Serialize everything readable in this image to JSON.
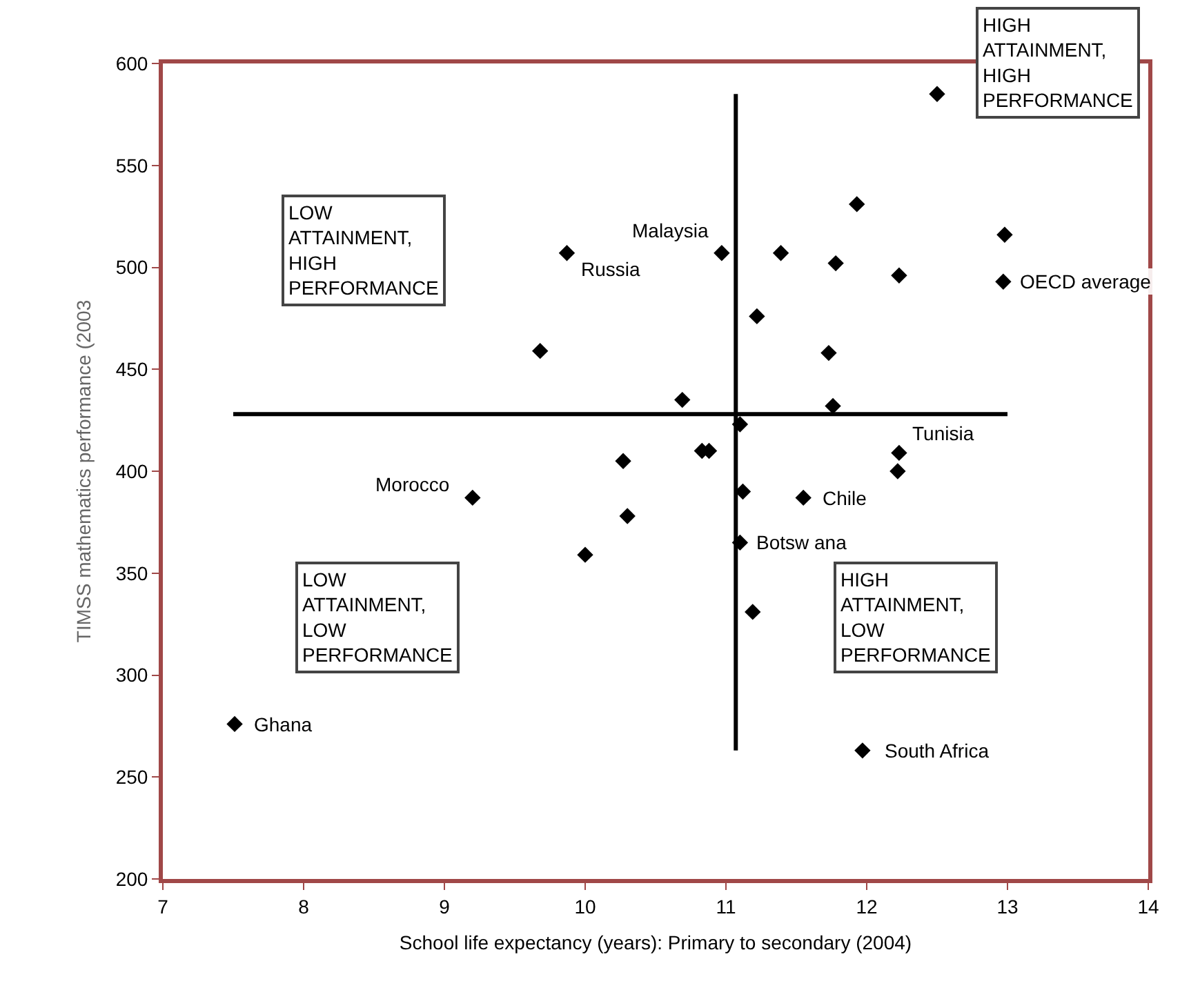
{
  "chart_data": {
    "type": "scatter",
    "xlabel": "School life expectancy (years): Primary to secondary (2004)",
    "ylabel": "TIMSS mathematics performance (2003",
    "xlim": [
      7,
      14
    ],
    "xticks": [
      7,
      8,
      9,
      10,
      11,
      12,
      13,
      14
    ],
    "ylim": [
      200,
      600
    ],
    "yticks": [
      200,
      250,
      300,
      350,
      400,
      450,
      500,
      550,
      600
    ],
    "marker": "diamond",
    "series": [
      {
        "color": "#000000",
        "x": [
          12.5,
          11.93,
          12.98,
          9.87,
          10.97,
          11.39,
          11.78,
          12.23,
          12.97,
          11.22,
          9.68,
          11.73,
          10.69,
          11.76,
          11.1,
          12.23,
          10.83,
          10.88,
          10.27,
          12.22,
          9.2,
          11.12,
          11.55,
          10.3,
          11.1,
          10.0,
          11.19,
          7.51,
          11.97
        ],
        "values": [
          585,
          531,
          516,
          507,
          507,
          507,
          502,
          496,
          493,
          476,
          459,
          458,
          435,
          432,
          423,
          409,
          410,
          410,
          405,
          400,
          387,
          390,
          387,
          378,
          365,
          359,
          331,
          276,
          263
        ]
      },
      {
        "type": "line",
        "color": "#000000",
        "x": [
          7.5,
          13
        ],
        "values": [
          428,
          428
        ],
        "marker": "none"
      },
      {
        "type": "line",
        "color": "#000000",
        "x": [
          11.07,
          11.07
        ],
        "values": [
          263,
          585
        ],
        "marker": "none"
      }
    ],
    "annotations": [
      {
        "text": "Russia",
        "x": 9.87,
        "y": 507
      },
      {
        "text": "Malaysia",
        "x": 10.97,
        "y": 507
      },
      {
        "text": "OECD average",
        "x": 12.97,
        "y": 493
      },
      {
        "text": "Tunisia",
        "x": 12.23,
        "y": 409
      },
      {
        "text": "Morocco",
        "x": 9.2,
        "y": 387
      },
      {
        "text": "Chile",
        "x": 11.55,
        "y": 387
      },
      {
        "text": "Botsw ana",
        "x": 11.1,
        "y": 365
      },
      {
        "text": "Ghana",
        "x": 7.51,
        "y": 276
      },
      {
        "text": "South Africa",
        "x": 11.97,
        "y": 263
      },
      "LOW ATTAINMENT, HIGH PERFORMANCE",
      "HIGH ATTAINMENT, HIGH PERFORMANCE",
      "LOW ATTAINMENT, LOW PERFORMANCE",
      "HIGH ATTAINMENT, LOW PERFORMANCE"
    ]
  }
}
